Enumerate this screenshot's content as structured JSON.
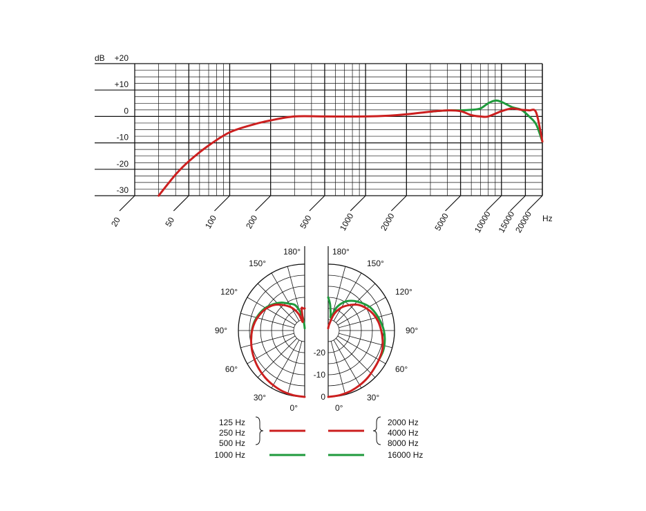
{
  "colors": {
    "red": "#cc1f1f",
    "green": "#1f9a3c",
    "grid": "#111111"
  },
  "chart_data": [
    {
      "type": "line",
      "xscale": "log",
      "xlim": [
        20,
        20000
      ],
      "ylim": [
        -30,
        20
      ],
      "xlabel": "Hz",
      "ylabel": "dB",
      "y_ticks": [
        "+20",
        "+10",
        "0",
        "-10",
        "-20",
        "-30"
      ],
      "x_ticks": [
        "20",
        "50",
        "100",
        "200",
        "500",
        "1000",
        "2000",
        "5000",
        "10000",
        "15000",
        "20000"
      ],
      "grid": true,
      "series": [
        {
          "color": "red",
          "x": [
            30,
            40,
            50,
            70,
            100,
            150,
            200,
            300,
            500,
            1000,
            1500,
            2000,
            3000,
            4000,
            5000,
            6000,
            7000,
            8000,
            10000,
            12000,
            14000,
            16000,
            18000,
            20000
          ],
          "y": [
            -30,
            -22,
            -17,
            -11,
            -6,
            -3,
            -1.5,
            0,
            0,
            0,
            0.3,
            0.8,
            1.8,
            2.3,
            2,
            0.5,
            0,
            0,
            2,
            3,
            2.5,
            2.3,
            1.5,
            -9.5
          ]
        },
        {
          "color": "green",
          "x": [
            3000,
            4000,
            5000,
            6000,
            7000,
            8000,
            9000,
            10000,
            12000,
            14000,
            16000,
            18000,
            20000
          ],
          "y": [
            1.8,
            2.3,
            2.3,
            2.5,
            3,
            5,
            6,
            5.5,
            3.5,
            2.5,
            0,
            -3,
            -9.5
          ]
        }
      ]
    },
    {
      "type": "polar",
      "rlim": [
        -30,
        0
      ],
      "r_ticks": [
        "0",
        "-10",
        "-20"
      ],
      "angle_ticks": [
        "0°",
        "30°",
        "60°",
        "90°",
        "120°",
        "150°",
        "180°"
      ],
      "series": [
        {
          "color": "red",
          "side": "left",
          "angles": [
            0,
            10,
            20,
            30,
            40,
            50,
            60,
            70,
            80,
            90,
            100,
            110,
            120,
            130,
            140,
            150,
            160,
            168,
            172,
            176,
            180
          ],
          "values": [
            0,
            -0.3,
            -0.8,
            -1.5,
            -2.2,
            -3,
            -3.8,
            -4.6,
            -5.4,
            -6.2,
            -7.2,
            -8.5,
            -10,
            -12,
            -15,
            -18,
            -22,
            -26,
            -20,
            -20,
            -20
          ]
        },
        {
          "color": "green",
          "side": "left",
          "angles": [
            80,
            90,
            100,
            110,
            120,
            130,
            140,
            150,
            160,
            170,
            175,
            180
          ],
          "values": [
            -5.4,
            -6.1,
            -6.9,
            -8.1,
            -9.5,
            -11.5,
            -13.5,
            -16,
            -18,
            -23,
            -27,
            -29
          ]
        },
        {
          "color": "red",
          "side": "right",
          "angles": [
            0,
            10,
            20,
            30,
            40,
            50,
            60,
            70,
            80,
            90,
            100,
            110,
            120,
            130,
            140,
            150,
            160,
            170,
            180
          ],
          "values": [
            0,
            -0.3,
            -0.8,
            -1.5,
            -2.2,
            -3,
            -3.5,
            -4,
            -5,
            -6,
            -7,
            -8.3,
            -10,
            -12,
            -15,
            -18,
            -22,
            -27,
            -29
          ]
        },
        {
          "color": "green",
          "side": "right",
          "angles": [
            60,
            70,
            80,
            90,
            100,
            110,
            120,
            130,
            140,
            150,
            160,
            168,
            172,
            176,
            180
          ],
          "values": [
            -3.5,
            -3.5,
            -4,
            -4.8,
            -6,
            -7.2,
            -8.5,
            -10.5,
            -12.5,
            -15,
            -19,
            -24,
            -22,
            -18,
            -15
          ]
        }
      ]
    }
  ],
  "legend": {
    "left": [
      "125 Hz",
      "250 Hz",
      "500 Hz",
      "1000 Hz"
    ],
    "right": [
      "2000 Hz",
      "4000 Hz",
      "8000 Hz",
      "16000 Hz"
    ]
  }
}
